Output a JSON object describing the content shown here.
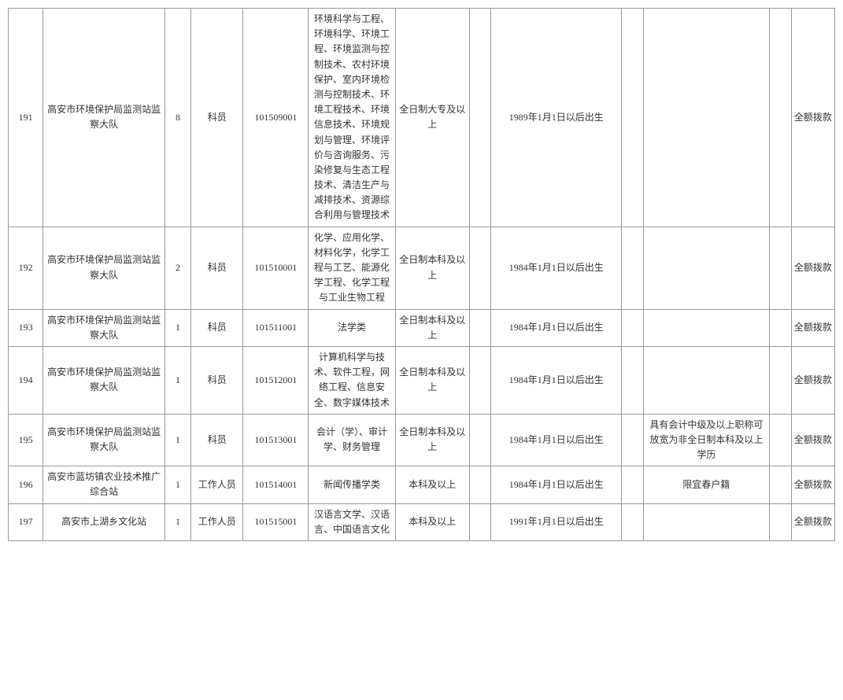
{
  "table": {
    "background_color": "#ffffff",
    "border_color": "#999999",
    "text_color": "#333333",
    "font_size_pt": 12,
    "rows": [
      {
        "num": "191",
        "org": "高安市环境保护局监测站监察大队",
        "count": "8",
        "position": "科员",
        "code": "101509001",
        "major": "环境科学与工程、环境科学、环境工程、环境监测与控制技术、农村环境保护、室内环境检测与控制技术、环境工程技术、环境信息技术、环境规划与管理、环境评价与咨询服务、污染修复与生态工程技术、清洁生产与减排技术、资源综合利用与管理技术",
        "edu": "全日制大专及以上",
        "c8": "",
        "age": "1989年1月1日以后出生",
        "c10": "",
        "note": "",
        "c12": "",
        "fund": "全额拨款"
      },
      {
        "num": "192",
        "org": "高安市环境保护局监测站监察大队",
        "count": "2",
        "position": "科员",
        "code": "101510001",
        "major": "化学、应用化学、材料化学，化学工程与工艺、能源化学工程、化学工程与工业生物工程",
        "edu": "全日制本科及以上",
        "c8": "",
        "age": "1984年1月1日以后出生",
        "c10": "",
        "note": "",
        "c12": "",
        "fund": "全额拨款"
      },
      {
        "num": "193",
        "org": "高安市环境保护局监测站监察大队",
        "count": "1",
        "position": "科员",
        "code": "101511001",
        "major": "法学类",
        "edu": "全日制本科及以上",
        "c8": "",
        "age": "1984年1月1日以后出生",
        "c10": "",
        "note": "",
        "c12": "",
        "fund": "全额拨款"
      },
      {
        "num": "194",
        "org": "高安市环境保护局监测站监察大队",
        "count": "1",
        "position": "科员",
        "code": "101512001",
        "major": "计算机科学与技术、软件工程，网络工程、信息安全、数字媒体技术",
        "edu": "全日制本科及以上",
        "c8": "",
        "age": "1984年1月1日以后出生",
        "c10": "",
        "note": "",
        "c12": "",
        "fund": "全额拨款"
      },
      {
        "num": "195",
        "org": "高安市环境保护局监测站监察大队",
        "count": "1",
        "position": "科员",
        "code": "101513001",
        "major": "会计（学）、审计学、财务管理",
        "edu": "全日制本科及以上",
        "c8": "",
        "age": "1984年1月1日以后出生",
        "c10": "",
        "note": "具有会计中级及以上职称可放宽为非全日制本科及以上学历",
        "c12": "",
        "fund": "全额拨款"
      },
      {
        "num": "196",
        "org": "高安市蓝坊镇农业技术推广综合站",
        "count": "1",
        "position": "工作人员",
        "code": "101514001",
        "major": "新闻传播学类",
        "edu": "本科及以上",
        "c8": "",
        "age": "1984年1月1日以后出生",
        "c10": "",
        "note": "限宜春户籍",
        "c12": "",
        "fund": "全额拨款"
      },
      {
        "num": "197",
        "org": "高安市上湖乡文化站",
        "count": "1",
        "position": "工作人员",
        "code": "101515001",
        "major": "汉语言文学、汉语言、中国语言文化",
        "edu": "本科及以上",
        "c8": "",
        "age": "1991年1月1日以后出生",
        "c10": "",
        "note": "",
        "c12": "",
        "fund": "全额拨款"
      }
    ]
  }
}
